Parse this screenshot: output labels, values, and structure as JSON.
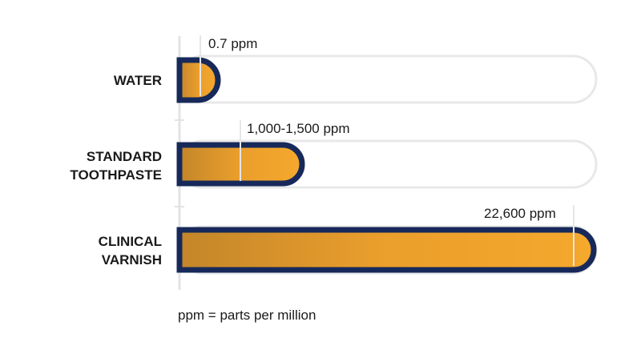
{
  "rows": [
    {
      "label_lines": [
        "WATER"
      ],
      "amount": "0.7 ppm"
    },
    {
      "label_lines": [
        "STANDARD",
        "TOOTHPASTE"
      ],
      "amount": "1,000-1,500 ppm"
    },
    {
      "label_lines": [
        "CLINICAL",
        "VARNISH"
      ],
      "amount": "22,600 ppm"
    }
  ],
  "footnote": "ppm = parts per million"
}
